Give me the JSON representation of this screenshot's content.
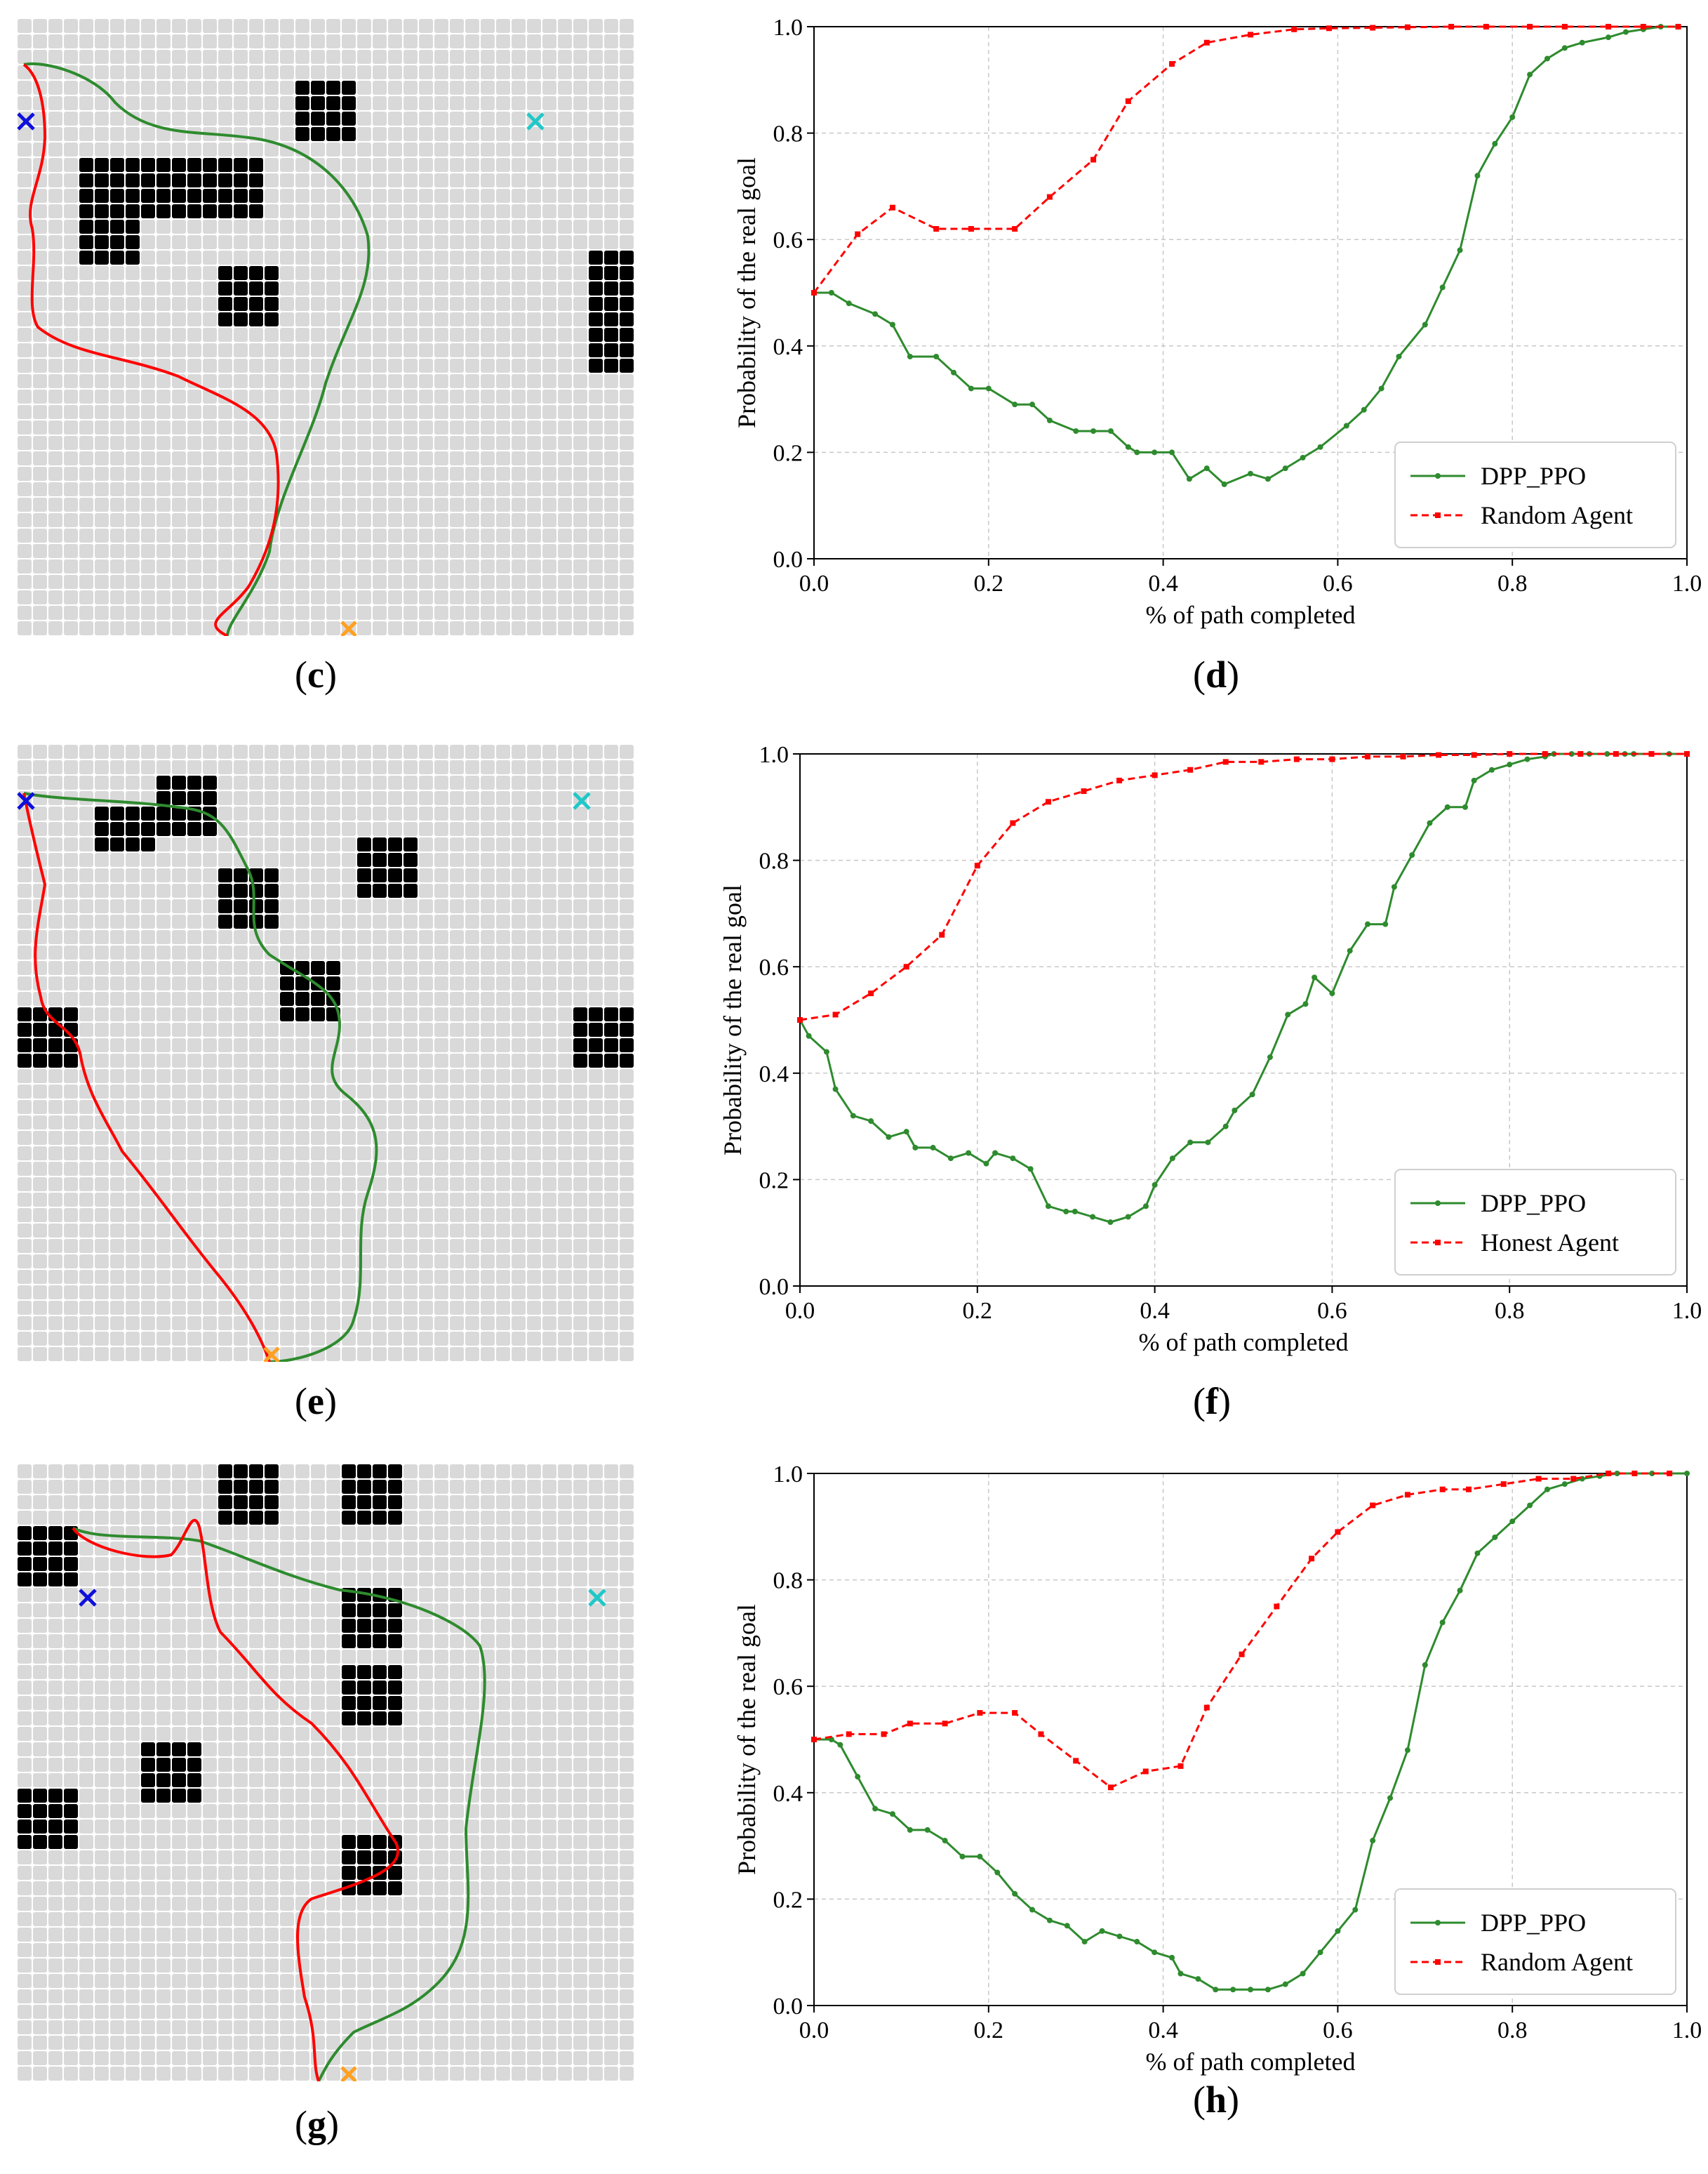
{
  "colors": {
    "ppo": "#2e8b2e",
    "random": "#ff0000",
    "obstacle": "#000000",
    "cell": "#d9d9d9",
    "start": "#1010dd",
    "real_goal": "#ffa020",
    "fake_goal": "#20c8c8"
  },
  "maps": [
    {
      "caption_letter": "c",
      "caption_open": "(",
      "caption_close": ")"
    },
    {
      "caption_letter": "e",
      "caption_open": "(",
      "caption_close": ")"
    },
    {
      "caption_letter": "g",
      "caption_open": "(",
      "caption_close": ")"
    }
  ],
  "chart_data": [
    {
      "type": "line",
      "caption_letter": "d",
      "caption_open": "(",
      "caption_close": ")",
      "xlabel": "% of path completed",
      "ylabel": "Probability of the real goal",
      "xlim": [
        0,
        1.0
      ],
      "ylim": [
        0,
        1.0
      ],
      "xticks": [
        "0.0",
        "0.2",
        "0.4",
        "0.6",
        "0.8",
        "1.0"
      ],
      "yticks": [
        "0.0",
        "0.2",
        "0.4",
        "0.6",
        "0.8",
        "1.0"
      ],
      "grid": true,
      "legend_position": "bottom-right",
      "series": [
        {
          "name": "DPP_PPO",
          "style": "solid",
          "x": [
            0,
            0.02,
            0.04,
            0.07,
            0.09,
            0.11,
            0.14,
            0.16,
            0.18,
            0.2,
            0.23,
            0.25,
            0.27,
            0.3,
            0.32,
            0.34,
            0.36,
            0.37,
            0.39,
            0.41,
            0.43,
            0.45,
            0.47,
            0.5,
            0.52,
            0.54,
            0.56,
            0.58,
            0.61,
            0.63,
            0.65,
            0.67,
            0.7,
            0.72,
            0.74,
            0.76,
            0.78,
            0.8,
            0.82,
            0.84,
            0.86,
            0.88,
            0.91,
            0.93,
            0.95,
            0.97,
            0.99
          ],
          "y": [
            0.5,
            0.5,
            0.48,
            0.46,
            0.44,
            0.38,
            0.38,
            0.35,
            0.32,
            0.32,
            0.29,
            0.29,
            0.26,
            0.24,
            0.24,
            0.24,
            0.21,
            0.2,
            0.2,
            0.2,
            0.15,
            0.17,
            0.14,
            0.16,
            0.15,
            0.17,
            0.19,
            0.21,
            0.25,
            0.28,
            0.32,
            0.38,
            0.44,
            0.51,
            0.58,
            0.72,
            0.78,
            0.83,
            0.91,
            0.94,
            0.96,
            0.97,
            0.98,
            0.99,
            0.995,
            1.0,
            1.0
          ]
        },
        {
          "name": "Random Agent",
          "style": "dashed",
          "x": [
            0,
            0.05,
            0.09,
            0.14,
            0.18,
            0.23,
            0.27,
            0.32,
            0.36,
            0.41,
            0.45,
            0.5,
            0.55,
            0.59,
            0.64,
            0.68,
            0.73,
            0.77,
            0.82,
            0.86,
            0.91,
            0.95,
            0.99
          ],
          "y": [
            0.5,
            0.61,
            0.66,
            0.62,
            0.62,
            0.62,
            0.68,
            0.75,
            0.86,
            0.93,
            0.97,
            0.985,
            0.995,
            0.997,
            0.998,
            0.999,
            1.0,
            1.0,
            1.0,
            1.0,
            1.0,
            1.0,
            1.0
          ]
        }
      ]
    },
    {
      "type": "line",
      "caption_letter": "f",
      "caption_open": "(",
      "caption_close": ")",
      "xlabel": "% of path completed",
      "ylabel": "Probability of the real goal",
      "xlim": [
        0,
        1.0
      ],
      "ylim": [
        0,
        1.0
      ],
      "xticks": [
        "0.0",
        "0.2",
        "0.4",
        "0.6",
        "0.8",
        "1.0"
      ],
      "yticks": [
        "0.0",
        "0.2",
        "0.4",
        "0.6",
        "0.8",
        "1.0"
      ],
      "grid": true,
      "legend_position": "bottom-right",
      "series": [
        {
          "name": "DPP_PPO",
          "style": "solid",
          "x": [
            0,
            0.01,
            0.03,
            0.04,
            0.06,
            0.08,
            0.1,
            0.12,
            0.13,
            0.15,
            0.17,
            0.19,
            0.21,
            0.22,
            0.24,
            0.26,
            0.28,
            0.3,
            0.31,
            0.33,
            0.35,
            0.37,
            0.39,
            0.4,
            0.42,
            0.44,
            0.46,
            0.48,
            0.49,
            0.51,
            0.53,
            0.55,
            0.57,
            0.58,
            0.6,
            0.62,
            0.64,
            0.66,
            0.67,
            0.69,
            0.71,
            0.73,
            0.75,
            0.76,
            0.78,
            0.8,
            0.82,
            0.84,
            0.85,
            0.87,
            0.89,
            0.91,
            0.93,
            0.94,
            0.96,
            0.98,
            1.0
          ],
          "y": [
            0.5,
            0.47,
            0.44,
            0.37,
            0.32,
            0.31,
            0.28,
            0.29,
            0.26,
            0.26,
            0.24,
            0.25,
            0.23,
            0.25,
            0.24,
            0.22,
            0.15,
            0.14,
            0.14,
            0.13,
            0.12,
            0.13,
            0.15,
            0.19,
            0.24,
            0.27,
            0.27,
            0.3,
            0.33,
            0.36,
            0.43,
            0.51,
            0.53,
            0.58,
            0.55,
            0.63,
            0.68,
            0.68,
            0.75,
            0.81,
            0.87,
            0.9,
            0.9,
            0.95,
            0.97,
            0.98,
            0.99,
            0.995,
            1.0,
            1.0,
            1.0,
            1.0,
            1.0,
            1.0,
            1.0,
            1.0,
            1.0
          ],
          "xmax_override": null
        },
        {
          "name": "Honest Agent",
          "style": "dashed",
          "x": [
            0,
            0.04,
            0.08,
            0.12,
            0.16,
            0.2,
            0.24,
            0.28,
            0.32,
            0.36,
            0.4,
            0.44,
            0.48,
            0.52,
            0.56,
            0.6,
            0.64,
            0.68,
            0.72,
            0.76,
            0.8,
            0.84,
            0.88,
            0.92,
            0.96,
            1.0
          ],
          "y": [
            0.5,
            0.51,
            0.55,
            0.6,
            0.66,
            0.79,
            0.87,
            0.91,
            0.93,
            0.95,
            0.96,
            0.97,
            0.985,
            0.985,
            0.99,
            0.99,
            0.995,
            0.995,
            0.998,
            0.998,
            1.0,
            1.0,
            1.0,
            1.0,
            1.0,
            1.0
          ]
        }
      ]
    },
    {
      "type": "line",
      "caption_letter": "h",
      "caption_open": "(",
      "caption_close": ")",
      "xlabel": "% of path completed",
      "ylabel": "Probability of the real goal",
      "xlim": [
        0,
        1.0
      ],
      "ylim": [
        0,
        1.0
      ],
      "xticks": [
        "0.0",
        "0.2",
        "0.4",
        "0.6",
        "0.8",
        "1.0"
      ],
      "yticks": [
        "0.0",
        "0.2",
        "0.4",
        "0.6",
        "0.8",
        "1.0"
      ],
      "grid": true,
      "legend_position": "bottom-right",
      "series": [
        {
          "name": "DPP_PPO",
          "style": "solid",
          "x": [
            0,
            0.02,
            0.03,
            0.05,
            0.07,
            0.09,
            0.11,
            0.13,
            0.15,
            0.17,
            0.19,
            0.21,
            0.23,
            0.25,
            0.27,
            0.29,
            0.31,
            0.33,
            0.35,
            0.37,
            0.39,
            0.41,
            0.42,
            0.44,
            0.46,
            0.48,
            0.5,
            0.52,
            0.54,
            0.56,
            0.58,
            0.6,
            0.62,
            0.64,
            0.66,
            0.68,
            0.7,
            0.72,
            0.74,
            0.76,
            0.78,
            0.8,
            0.82,
            0.84,
            0.86,
            0.88,
            0.9,
            0.92,
            0.94,
            0.96,
            0.98,
            1.0
          ],
          "y": [
            0.5,
            0.5,
            0.49,
            0.43,
            0.37,
            0.36,
            0.33,
            0.33,
            0.31,
            0.28,
            0.28,
            0.25,
            0.21,
            0.18,
            0.16,
            0.15,
            0.12,
            0.14,
            0.13,
            0.12,
            0.1,
            0.09,
            0.06,
            0.05,
            0.03,
            0.03,
            0.03,
            0.03,
            0.04,
            0.06,
            0.1,
            0.14,
            0.18,
            0.31,
            0.39,
            0.48,
            0.64,
            0.72,
            0.78,
            0.85,
            0.88,
            0.91,
            0.94,
            0.97,
            0.98,
            0.99,
            0.995,
            1.0,
            1.0,
            1.0,
            1.0,
            1.0
          ]
        },
        {
          "name": "Random Agent",
          "style": "dashed",
          "x": [
            0,
            0.04,
            0.08,
            0.11,
            0.15,
            0.19,
            0.23,
            0.26,
            0.3,
            0.34,
            0.38,
            0.42,
            0.45,
            0.49,
            0.53,
            0.57,
            0.6,
            0.64,
            0.68,
            0.72,
            0.75,
            0.79,
            0.83,
            0.87,
            0.91,
            0.94,
            0.98
          ],
          "y": [
            0.5,
            0.51,
            0.51,
            0.53,
            0.53,
            0.55,
            0.55,
            0.51,
            0.46,
            0.41,
            0.44,
            0.45,
            0.56,
            0.66,
            0.75,
            0.84,
            0.89,
            0.94,
            0.96,
            0.97,
            0.97,
            0.98,
            0.99,
            0.99,
            1.0,
            1.0,
            1.0
          ]
        }
      ]
    }
  ]
}
